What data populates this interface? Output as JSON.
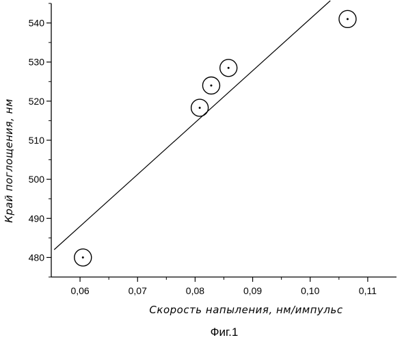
{
  "chart_data": {
    "type": "scatter",
    "title": "",
    "xlabel": "Скорость напыления, нм/импульс",
    "ylabel": "Край поглощения, нм",
    "caption": "Фиг.1",
    "xlim": [
      0.055,
      0.115
    ],
    "ylim": [
      475,
      545
    ],
    "x_ticks": [
      0.06,
      0.07,
      0.08,
      0.09,
      0.1,
      0.11
    ],
    "x_tick_labels": [
      "0,06",
      "0,07",
      "0,08",
      "0,09",
      "0,10",
      "0,11"
    ],
    "y_ticks": [
      480,
      490,
      500,
      510,
      520,
      530,
      540
    ],
    "y_tick_labels": [
      "480",
      "490",
      "500",
      "510",
      "520",
      "530",
      "540"
    ],
    "grid": false,
    "points": [
      {
        "x": 0.0605,
        "y": 480.0
      },
      {
        "x": 0.0808,
        "y": 518.3
      },
      {
        "x": 0.0828,
        "y": 524.0
      },
      {
        "x": 0.0858,
        "y": 528.5
      },
      {
        "x": 0.1065,
        "y": 541.0
      }
    ],
    "fit_line": {
      "x": [
        0.0555,
        0.1035
      ],
      "y": [
        482.0,
        545.7
      ]
    }
  }
}
